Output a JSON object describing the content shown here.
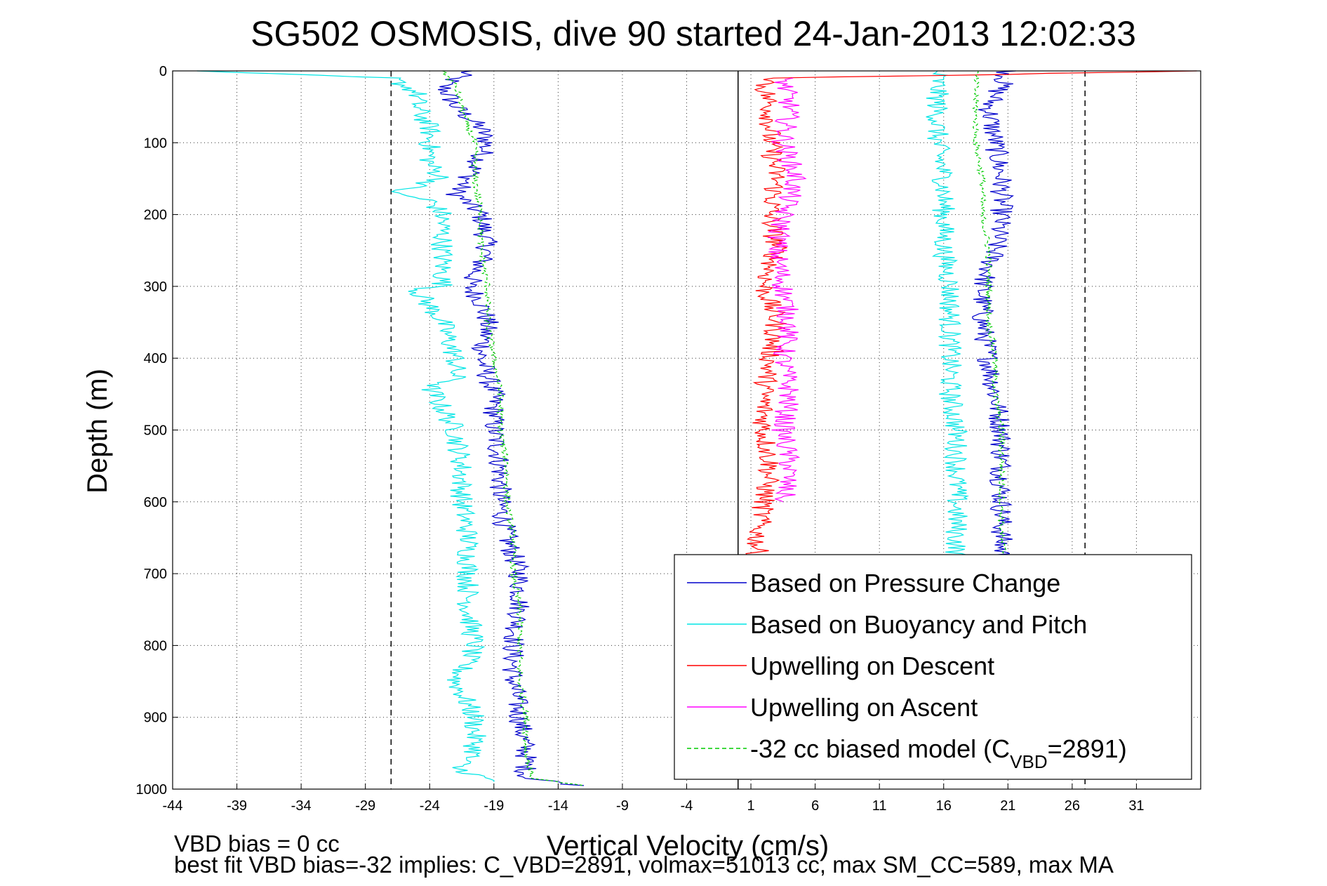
{
  "chart_data": {
    "type": "line",
    "title": "SG502 OSMOSIS, dive 90 started 24-Jan-2013 12:02:33",
    "xlabel": "Vertical Velocity (cm/s)",
    "ylabel": "Depth (m)",
    "xlim": [
      -44,
      36
    ],
    "ylim": [
      1000,
      0
    ],
    "y_inverted": true,
    "grid": true,
    "legend_position": "bottom-right",
    "xticks": [
      -44,
      -39,
      -34,
      -29,
      -24,
      -19,
      -14,
      -9,
      -4,
      1,
      6,
      11,
      16,
      21,
      26,
      31
    ],
    "yticks": [
      0,
      100,
      200,
      300,
      400,
      500,
      600,
      700,
      800,
      900,
      1000
    ],
    "reference_lines": [
      {
        "x": -27,
        "style": "dashed",
        "color": "#000000"
      },
      {
        "x": 0,
        "style": "solid",
        "color": "#000000"
      },
      {
        "x": 27,
        "style": "dashed",
        "color": "#000000"
      }
    ],
    "series": [
      {
        "name": "Based on Pressure Change",
        "color": "#0000cc",
        "style": "solid",
        "y": [
          0,
          20,
          50,
          80,
          100,
          120,
          150,
          170,
          200,
          250,
          300,
          320,
          350,
          400,
          450,
          500,
          550,
          600,
          650,
          700,
          750,
          800,
          850,
          900,
          950,
          985,
          995
        ],
        "x": [
          -21,
          -23,
          -22,
          -20,
          -19.5,
          -20,
          -21,
          -22,
          -20,
          -19.5,
          -21,
          -20,
          -19.5,
          -20,
          -19,
          -19,
          -18.5,
          -18.5,
          -18,
          -17,
          -17,
          -17.5,
          -17.5,
          -17,
          -16.5,
          -16.5,
          -12
        ]
      },
      {
        "name": "Based on Pressure Change",
        "color": "#0000cc",
        "style": "solid",
        "y": [
          0,
          20,
          50,
          100,
          150,
          200,
          250,
          300,
          350,
          400,
          450,
          500,
          550,
          600,
          650,
          700,
          750,
          800
        ],
        "x": [
          21,
          20.5,
          19.5,
          20,
          20.5,
          20.5,
          20,
          19,
          19,
          19.5,
          20,
          20.5,
          20.5,
          20.5,
          20.5,
          20.5,
          20.5,
          20.5
        ]
      },
      {
        "name": "Based on Buoyancy and Pitch",
        "color": "#00e5e5",
        "style": "solid",
        "y": [
          0,
          10,
          30,
          50,
          80,
          100,
          130,
          150,
          170,
          180,
          200,
          250,
          300,
          305,
          350,
          400,
          430,
          440,
          500,
          550,
          600,
          650,
          700,
          750,
          800,
          850,
          900,
          950,
          970,
          990
        ],
        "x": [
          -43,
          -27,
          -25,
          -25,
          -24,
          -24,
          -24,
          -23,
          -27,
          -24,
          -23,
          -23,
          -23,
          -25,
          -23,
          -22,
          -22,
          -24,
          -22,
          -21.5,
          -21.5,
          -21,
          -21,
          -21,
          -20.5,
          -22,
          -20.5,
          -20.5,
          -22,
          -19
        ]
      },
      {
        "name": "Based on Buoyancy and Pitch",
        "color": "#00e5e5",
        "style": "solid",
        "y": [
          0,
          20,
          50,
          100,
          150,
          200,
          250,
          300,
          350,
          400,
          450,
          500,
          550,
          600,
          650,
          700
        ],
        "x": [
          15.5,
          15.5,
          15.5,
          15.5,
          16,
          16,
          16,
          16.5,
          16.5,
          16.5,
          16.5,
          17,
          17,
          17,
          17,
          17
        ]
      },
      {
        "name": "Upwelling on Descent",
        "color": "#ff0000",
        "style": "solid",
        "y": [
          0,
          5,
          10,
          20,
          50,
          100,
          150,
          200,
          250,
          300,
          350,
          400,
          450,
          500,
          550,
          600,
          650,
          700
        ],
        "x": [
          35,
          20,
          3,
          2,
          2.5,
          2.5,
          3,
          2.5,
          3,
          2,
          3,
          2.5,
          2,
          2,
          2.5,
          2,
          1.5,
          1.5
        ]
      },
      {
        "name": "Upwelling on Ascent",
        "color": "#ff00ff",
        "style": "solid",
        "y": [
          10,
          50,
          100,
          150,
          200,
          250,
          300,
          350,
          400,
          450,
          500,
          550,
          600
        ],
        "x": [
          3.5,
          4,
          3.5,
          4.5,
          3.5,
          3,
          3.5,
          4,
          3.5,
          4,
          3.5,
          4,
          3.5
        ]
      },
      {
        "name": "-32 cc biased model (CVBD=2891)",
        "color": "#00cc00",
        "style": "dashed",
        "y": [
          0,
          20,
          50,
          80,
          100,
          150,
          200,
          250,
          300,
          350,
          400,
          450,
          500,
          550,
          600,
          650,
          700,
          750,
          800,
          850,
          900,
          950,
          985,
          995
        ],
        "x": [
          -23,
          -22,
          -21.5,
          -21,
          -20.5,
          -20.5,
          -20,
          -20,
          -19.5,
          -19.5,
          -19,
          -18.5,
          -18.5,
          -18,
          -18,
          -17.5,
          -17.5,
          -17,
          -17,
          -17,
          -16.5,
          -16.5,
          -16,
          -12
        ]
      },
      {
        "name": "-32 cc biased model (CVBD=2891)",
        "color": "#00cc00",
        "style": "dashed",
        "y": [
          0,
          20,
          50,
          100,
          150,
          200,
          250,
          300,
          350,
          400,
          450,
          500,
          550,
          600,
          650,
          700
        ],
        "x": [
          18.5,
          18.5,
          18.5,
          18.5,
          19,
          19,
          19.5,
          19.5,
          19.5,
          20,
          20,
          20.5,
          20.5,
          20.5,
          20.5,
          21
        ]
      }
    ],
    "legend": [
      {
        "label": "Based on Pressure Change",
        "color": "#0000cc",
        "style": "solid"
      },
      {
        "label": "Based on Buoyancy and Pitch",
        "color": "#00e5e5",
        "style": "solid"
      },
      {
        "label": "Upwelling on Descent",
        "color": "#ff0000",
        "style": "solid"
      },
      {
        "label": "Upwelling on Ascent",
        "color": "#ff00ff",
        "style": "solid"
      },
      {
        "label": "-32 cc biased model (C",
        "sub": "VBD",
        "suffix": "=2891)",
        "color": "#00cc00",
        "style": "dashed"
      }
    ]
  },
  "annotations": {
    "vbd_bias": "VBD bias = 0 cc",
    "best_fit": "best fit VBD bias=-32 implies: C_VBD=2891, volmax=51013 cc, max SM_CC=589, max MA"
  }
}
